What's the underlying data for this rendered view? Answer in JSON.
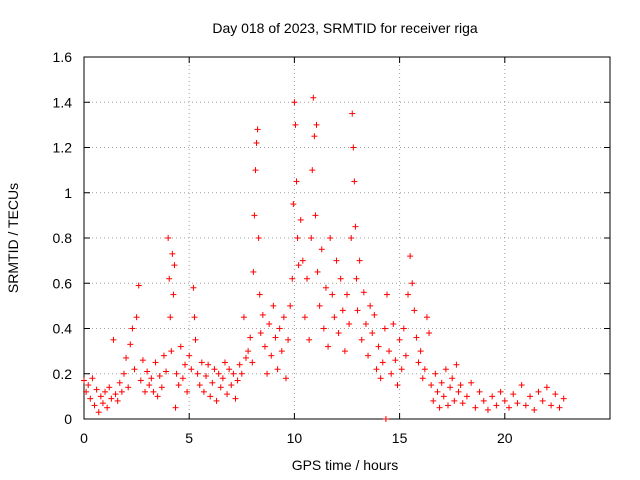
{
  "chart_data": {
    "type": "scatter",
    "title": "Day 018 of 2023, SRMTID for receiver riga",
    "xlabel": "GPS time / hours",
    "ylabel": "SRMTID / TECUs",
    "xlim": [
      0,
      25
    ],
    "ylim": [
      0,
      1.6
    ],
    "x_ticks": [
      "0",
      "5",
      "10",
      "15",
      "20"
    ],
    "x_tick_values": [
      0,
      5,
      10,
      15,
      20
    ],
    "y_ticks": [
      "0",
      "0.2",
      "0.4",
      "0.6",
      "0.8",
      "1",
      "1.2",
      "1.4",
      "1.6"
    ],
    "y_tick_values": [
      0,
      0.2,
      0.4,
      0.6,
      0.8,
      1.0,
      1.2,
      1.4,
      1.6
    ],
    "grid": true,
    "series": [
      {
        "name": "SRMTID",
        "marker": "+",
        "color": "#ff0000",
        "points": [
          [
            0.0,
            0.17
          ],
          [
            0.1,
            0.12
          ],
          [
            0.2,
            0.15
          ],
          [
            0.3,
            0.09
          ],
          [
            0.4,
            0.18
          ],
          [
            0.5,
            0.06
          ],
          [
            0.6,
            0.13
          ],
          [
            0.7,
            0.03
          ],
          [
            0.8,
            0.1
          ],
          [
            0.9,
            0.07
          ],
          [
            1.0,
            0.12
          ],
          [
            1.1,
            0.05
          ],
          [
            1.2,
            0.14
          ],
          [
            1.3,
            0.09
          ],
          [
            1.4,
            0.35
          ],
          [
            1.5,
            0.11
          ],
          [
            1.6,
            0.08
          ],
          [
            1.7,
            0.16
          ],
          [
            1.8,
            0.12
          ],
          [
            1.9,
            0.2
          ],
          [
            2.0,
            0.27
          ],
          [
            2.1,
            0.14
          ],
          [
            2.2,
            0.33
          ],
          [
            2.3,
            0.4
          ],
          [
            2.4,
            0.22
          ],
          [
            2.5,
            0.45
          ],
          [
            2.6,
            0.59
          ],
          [
            2.7,
            0.17
          ],
          [
            2.8,
            0.26
          ],
          [
            2.9,
            0.12
          ],
          [
            3.0,
            0.21
          ],
          [
            3.1,
            0.15
          ],
          [
            3.2,
            0.18
          ],
          [
            3.3,
            0.12
          ],
          [
            3.4,
            0.25
          ],
          [
            3.5,
            0.1
          ],
          [
            3.6,
            0.19
          ],
          [
            3.7,
            0.14
          ],
          [
            3.8,
            0.28
          ],
          [
            3.9,
            0.21
          ],
          [
            4.0,
            0.8
          ],
          [
            4.05,
            0.62
          ],
          [
            4.1,
            0.45
          ],
          [
            4.15,
            0.3
          ],
          [
            4.2,
            0.73
          ],
          [
            4.25,
            0.55
          ],
          [
            4.3,
            0.68
          ],
          [
            4.35,
            0.05
          ],
          [
            4.4,
            0.2
          ],
          [
            4.5,
            0.15
          ],
          [
            4.6,
            0.32
          ],
          [
            4.7,
            0.18
          ],
          [
            4.8,
            0.24
          ],
          [
            4.9,
            0.12
          ],
          [
            5.0,
            0.28
          ],
          [
            5.1,
            0.22
          ],
          [
            5.2,
            0.58
          ],
          [
            5.25,
            0.45
          ],
          [
            5.3,
            0.35
          ],
          [
            5.4,
            0.2
          ],
          [
            5.5,
            0.15
          ],
          [
            5.6,
            0.25
          ],
          [
            5.7,
            0.12
          ],
          [
            5.8,
            0.19
          ],
          [
            5.9,
            0.24
          ],
          [
            6.0,
            0.1
          ],
          [
            6.1,
            0.16
          ],
          [
            6.2,
            0.22
          ],
          [
            6.3,
            0.08
          ],
          [
            6.4,
            0.2
          ],
          [
            6.5,
            0.14
          ],
          [
            6.6,
            0.18
          ],
          [
            6.7,
            0.25
          ],
          [
            6.8,
            0.11
          ],
          [
            6.9,
            0.22
          ],
          [
            7.0,
            0.15
          ],
          [
            7.1,
            0.2
          ],
          [
            7.2,
            0.09
          ],
          [
            7.3,
            0.17
          ],
          [
            7.4,
            0.24
          ],
          [
            7.5,
            0.2
          ],
          [
            7.6,
            0.45
          ],
          [
            7.7,
            0.27
          ],
          [
            7.8,
            0.3
          ],
          [
            7.9,
            0.36
          ],
          [
            8.0,
            0.25
          ],
          [
            8.05,
            0.65
          ],
          [
            8.1,
            0.9
          ],
          [
            8.15,
            1.1
          ],
          [
            8.2,
            1.22
          ],
          [
            8.25,
            1.28
          ],
          [
            8.3,
            0.8
          ],
          [
            8.35,
            0.55
          ],
          [
            8.4,
            0.38
          ],
          [
            8.5,
            0.46
          ],
          [
            8.6,
            0.32
          ],
          [
            8.7,
            0.2
          ],
          [
            8.8,
            0.42
          ],
          [
            8.9,
            0.28
          ],
          [
            9.0,
            0.5
          ],
          [
            9.1,
            0.36
          ],
          [
            9.2,
            0.22
          ],
          [
            9.3,
            0.4
          ],
          [
            9.4,
            0.3
          ],
          [
            9.5,
            0.45
          ],
          [
            9.6,
            0.18
          ],
          [
            9.7,
            0.35
          ],
          [
            9.8,
            0.5
          ],
          [
            9.9,
            0.62
          ],
          [
            9.95,
            0.95
          ],
          [
            10.0,
            1.4
          ],
          [
            10.05,
            1.3
          ],
          [
            10.1,
            1.05
          ],
          [
            10.15,
            0.8
          ],
          [
            10.2,
            0.68
          ],
          [
            10.3,
            0.88
          ],
          [
            10.4,
            0.7
          ],
          [
            10.5,
            0.45
          ],
          [
            10.6,
            0.62
          ],
          [
            10.7,
            0.35
          ],
          [
            10.8,
            0.8
          ],
          [
            10.85,
            1.1
          ],
          [
            10.9,
            1.42
          ],
          [
            10.95,
            1.25
          ],
          [
            11.0,
            0.9
          ],
          [
            11.05,
            1.3
          ],
          [
            11.1,
            0.65
          ],
          [
            11.2,
            0.5
          ],
          [
            11.3,
            0.75
          ],
          [
            11.4,
            0.4
          ],
          [
            11.5,
            0.58
          ],
          [
            11.6,
            0.32
          ],
          [
            11.7,
            0.8
          ],
          [
            11.8,
            0.55
          ],
          [
            11.9,
            0.45
          ],
          [
            12.0,
            0.7
          ],
          [
            12.1,
            0.38
          ],
          [
            12.2,
            0.62
          ],
          [
            12.3,
            0.48
          ],
          [
            12.4,
            0.3
          ],
          [
            12.5,
            0.55
          ],
          [
            12.6,
            0.42
          ],
          [
            12.7,
            0.8
          ],
          [
            12.75,
            1.35
          ],
          [
            12.8,
            1.2
          ],
          [
            12.85,
            1.05
          ],
          [
            12.9,
            0.85
          ],
          [
            12.95,
            0.62
          ],
          [
            13.0,
            0.48
          ],
          [
            13.1,
            0.7
          ],
          [
            13.2,
            0.35
          ],
          [
            13.3,
            0.56
          ],
          [
            13.4,
            0.42
          ],
          [
            13.5,
            0.28
          ],
          [
            13.6,
            0.5
          ],
          [
            13.7,
            0.38
          ],
          [
            13.8,
            0.46
          ],
          [
            13.9,
            0.22
          ],
          [
            14.0,
            0.32
          ],
          [
            14.1,
            0.18
          ],
          [
            14.2,
            0.25
          ],
          [
            14.3,
            0.4
          ],
          [
            14.35,
            0.0
          ],
          [
            14.4,
            0.55
          ],
          [
            14.5,
            0.3
          ],
          [
            14.6,
            0.2
          ],
          [
            14.7,
            0.42
          ],
          [
            14.8,
            0.26
          ],
          [
            14.9,
            0.15
          ],
          [
            15.0,
            0.35
          ],
          [
            15.1,
            0.22
          ],
          [
            15.2,
            0.4
          ],
          [
            15.3,
            0.28
          ],
          [
            15.4,
            0.55
          ],
          [
            15.5,
            0.72
          ],
          [
            15.6,
            0.6
          ],
          [
            15.7,
            0.48
          ],
          [
            15.8,
            0.36
          ],
          [
            15.9,
            0.25
          ],
          [
            16.0,
            0.3
          ],
          [
            16.1,
            0.18
          ],
          [
            16.2,
            0.22
          ],
          [
            16.3,
            0.45
          ],
          [
            16.4,
            0.38
          ],
          [
            16.5,
            0.15
          ],
          [
            16.6,
            0.08
          ],
          [
            16.7,
            0.2
          ],
          [
            16.8,
            0.12
          ],
          [
            16.9,
            0.05
          ],
          [
            17.0,
            0.16
          ],
          [
            17.1,
            0.1
          ],
          [
            17.2,
            0.22
          ],
          [
            17.3,
            0.06
          ],
          [
            17.4,
            0.14
          ],
          [
            17.5,
            0.18
          ],
          [
            17.6,
            0.08
          ],
          [
            17.7,
            0.24
          ],
          [
            17.8,
            0.12
          ],
          [
            17.9,
            0.15
          ],
          [
            18.0,
            0.07
          ],
          [
            18.2,
            0.1
          ],
          [
            18.4,
            0.16
          ],
          [
            18.6,
            0.05
          ],
          [
            18.8,
            0.12
          ],
          [
            19.0,
            0.08
          ],
          [
            19.2,
            0.04
          ],
          [
            19.4,
            0.1
          ],
          [
            19.6,
            0.06
          ],
          [
            19.8,
            0.12
          ],
          [
            20.0,
            0.08
          ],
          [
            20.2,
            0.05
          ],
          [
            20.4,
            0.11
          ],
          [
            20.6,
            0.07
          ],
          [
            20.8,
            0.15
          ],
          [
            21.0,
            0.06
          ],
          [
            21.2,
            0.1
          ],
          [
            21.4,
            0.04
          ],
          [
            21.6,
            0.12
          ],
          [
            21.8,
            0.08
          ],
          [
            22.0,
            0.14
          ],
          [
            22.2,
            0.06
          ],
          [
            22.4,
            0.11
          ],
          [
            22.6,
            0.05
          ],
          [
            22.8,
            0.09
          ]
        ]
      }
    ]
  }
}
